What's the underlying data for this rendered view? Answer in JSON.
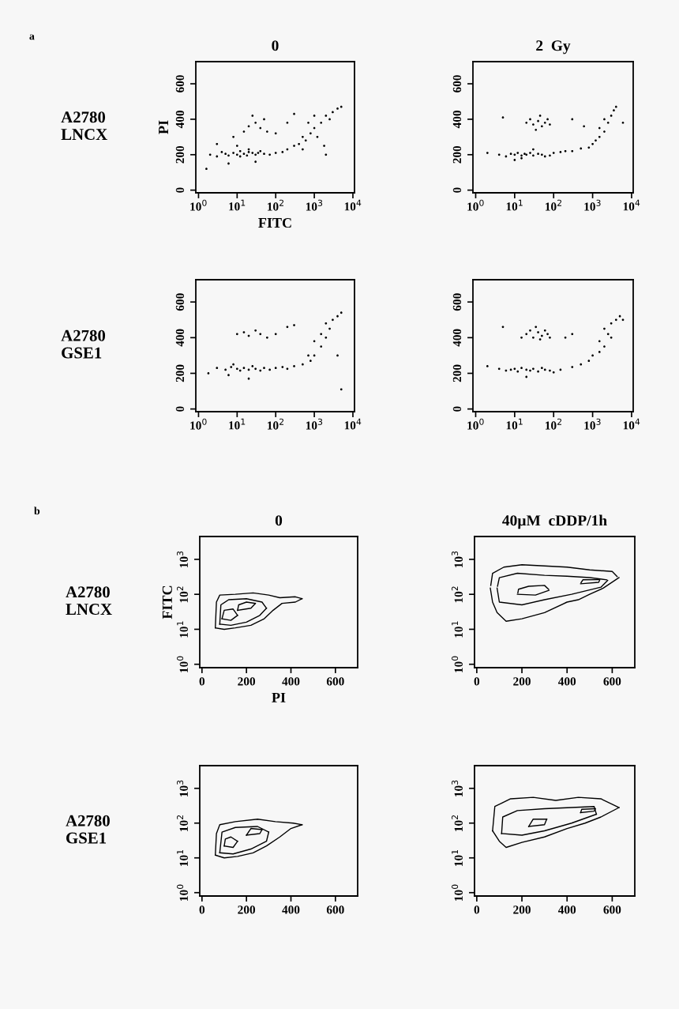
{
  "chart_data": [
    {
      "type": "scatter",
      "title": "0",
      "xlabel": "FITC",
      "ylabel": "PI",
      "annotations": [
        "a",
        "A2780\nLNCX"
      ],
      "log": "x",
      "marker": "circle",
      "grid": false,
      "legend": false,
      "xlim": [
        0.85,
        11000
      ],
      "ylim": [
        -15,
        725
      ],
      "xticks": [
        {
          "value": 1,
          "label": "10$^{0}$"
        },
        {
          "value": 10,
          "label": "10$^{1}$"
        },
        {
          "value": 100,
          "label": "10$^{2}$"
        },
        {
          "value": 1000,
          "label": "10$^{3}$"
        },
        {
          "value": 10000,
          "label": "10$^{4}$"
        }
      ],
      "yticks": [
        0,
        200,
        400,
        600
      ],
      "series": [
        {
          "color": "#000000",
          "x": [
            2,
            3,
            4,
            5,
            6,
            8,
            10,
            12,
            15,
            18,
            20,
            25,
            30,
            40,
            50,
            70,
            100,
            150,
            200,
            300,
            400,
            500,
            600,
            800,
            1000,
            1200,
            1500,
            2000,
            2500,
            3000,
            4000,
            1000,
            700,
            1800,
            500,
            20,
            30,
            40,
            25,
            50,
            15,
            8,
            60,
            100,
            200,
            3,
            6,
            30,
            1.6,
            5000,
            2000,
            300,
            10,
            12,
            20,
            35
          ],
          "values": [
            200,
            190,
            215,
            205,
            195,
            210,
            200,
            220,
            205,
            195,
            215,
            210,
            200,
            220,
            205,
            200,
            210,
            215,
            230,
            250,
            260,
            300,
            280,
            320,
            350,
            300,
            380,
            420,
            400,
            440,
            460,
            420,
            380,
            250,
            230,
            360,
            380,
            350,
            420,
            400,
            330,
            300,
            330,
            320,
            380,
            260,
            150,
            160,
            120,
            470,
            200,
            430,
            250,
            190,
            230,
            210
          ]
        }
      ]
    },
    {
      "type": "scatter",
      "title": "2  Gy",
      "log": "x",
      "marker": "circle",
      "grid": false,
      "legend": false,
      "xlim": [
        0.85,
        11000
      ],
      "ylim": [
        -15,
        725
      ],
      "xticks": [
        {
          "value": 1,
          "label": "10$^{0}$"
        },
        {
          "value": 10,
          "label": "10$^{1}$"
        },
        {
          "value": 100,
          "label": "10$^{2}$"
        },
        {
          "value": 1000,
          "label": "10$^{3}$"
        },
        {
          "value": 10000,
          "label": "10$^{4}$"
        }
      ],
      "yticks": [
        0,
        200,
        400,
        600
      ],
      "series": [
        {
          "color": "#000000",
          "x": [
            2,
            4,
            6,
            8,
            10,
            12,
            15,
            18,
            20,
            25,
            30,
            40,
            50,
            60,
            80,
            100,
            150,
            200,
            300,
            500,
            800,
            1000,
            1200,
            1500,
            2000,
            2500,
            3000,
            4000,
            3500,
            2000,
            1500,
            20,
            25,
            30,
            40,
            50,
            60,
            70,
            80,
            35,
            45,
            5,
            300,
            600,
            6000,
            10,
            15,
            30
          ],
          "values": [
            210,
            200,
            190,
            205,
            200,
            210,
            195,
            205,
            200,
            210,
            195,
            205,
            200,
            190,
            195,
            210,
            215,
            220,
            220,
            235,
            240,
            260,
            280,
            300,
            330,
            380,
            420,
            470,
            450,
            400,
            350,
            380,
            400,
            370,
            390,
            360,
            380,
            400,
            370,
            340,
            420,
            410,
            400,
            360,
            380,
            170,
            180,
            230
          ]
        }
      ]
    },
    {
      "type": "scatter",
      "annotations": [
        "A2780\nGSE1"
      ],
      "log": "x",
      "marker": "circle",
      "grid": false,
      "legend": false,
      "xlim": [
        0.85,
        11000
      ],
      "ylim": [
        -15,
        725
      ],
      "xticks": [
        {
          "value": 1,
          "label": "10$^{0}$"
        },
        {
          "value": 10,
          "label": "10$^{1}$"
        },
        {
          "value": 100,
          "label": "10$^{2}$"
        },
        {
          "value": 1000,
          "label": "10$^{3}$"
        },
        {
          "value": 10000,
          "label": "10$^{4}$"
        }
      ],
      "yticks": [
        0,
        200,
        400,
        600
      ],
      "series": [
        {
          "color": "#000000",
          "x": [
            1.8,
            3,
            5,
            7,
            10,
            12,
            15,
            20,
            25,
            30,
            40,
            50,
            70,
            100,
            150,
            200,
            300,
            500,
            800,
            1000,
            1500,
            2000,
            2500,
            3000,
            4000,
            5000,
            2000,
            1500,
            1000,
            700,
            10,
            15,
            20,
            30,
            40,
            60,
            100,
            200,
            300,
            8,
            20,
            6,
            5000,
            4000
          ],
          "values": [
            200,
            230,
            220,
            235,
            225,
            215,
            230,
            220,
            240,
            225,
            215,
            230,
            220,
            230,
            235,
            225,
            240,
            250,
            270,
            300,
            350,
            400,
            450,
            500,
            520,
            540,
            480,
            420,
            380,
            300,
            420,
            430,
            410,
            440,
            420,
            400,
            420,
            460,
            470,
            250,
            170,
            190,
            110,
            300
          ]
        }
      ]
    },
    {
      "type": "scatter",
      "log": "x",
      "marker": "circle",
      "grid": false,
      "legend": false,
      "xlim": [
        0.85,
        11000
      ],
      "ylim": [
        -15,
        725
      ],
      "xticks": [
        {
          "value": 1,
          "label": "10$^{0}$"
        },
        {
          "value": 10,
          "label": "10$^{1}$"
        },
        {
          "value": 100,
          "label": "10$^{2}$"
        },
        {
          "value": 1000,
          "label": "10$^{3}$"
        },
        {
          "value": 10000,
          "label": "10$^{4}$"
        }
      ],
      "yticks": [
        0,
        200,
        400,
        600
      ],
      "series": [
        {
          "color": "#000000",
          "x": [
            2,
            4,
            6,
            8,
            10,
            12,
            15,
            20,
            25,
            30,
            40,
            50,
            60,
            80,
            100,
            150,
            300,
            500,
            800,
            1000,
            1500,
            2000,
            2500,
            3000,
            4000,
            5000,
            3000,
            2000,
            1500,
            20,
            25,
            30,
            40,
            50,
            60,
            70,
            80,
            35,
            45,
            15,
            5,
            200,
            300,
            6000,
            20
          ],
          "values": [
            240,
            225,
            215,
            220,
            225,
            210,
            230,
            220,
            215,
            225,
            210,
            230,
            220,
            215,
            205,
            220,
            235,
            250,
            270,
            300,
            320,
            350,
            420,
            480,
            500,
            520,
            400,
            450,
            380,
            420,
            440,
            400,
            430,
            410,
            440,
            420,
            400,
            460,
            390,
            400,
            460,
            400,
            420,
            500,
            180
          ]
        }
      ]
    },
    {
      "type": "line",
      "title": "0",
      "xlabel": "PI",
      "ylabel": "FITC",
      "annotations": [
        "b",
        "A2780\nLNCX"
      ],
      "log": "y",
      "grid": false,
      "legend": false,
      "line_style": "solid",
      "marker": "none",
      "xlim": [
        -10,
        700
      ],
      "ylim": [
        0.8,
        4500
      ],
      "xticks": [
        0,
        200,
        400,
        600
      ],
      "yticks": [
        {
          "value": 1,
          "label": "10$^{0}$"
        },
        {
          "value": 10,
          "label": "10$^{1}$"
        },
        {
          "value": 100,
          "label": "10$^{2}$"
        },
        {
          "value": 1000,
          "label": "10$^{3}$"
        }
      ],
      "series": [
        {
          "color": "#000000",
          "x": [
            60,
            100,
            150,
            220,
            280,
            320,
            360,
            420,
            450
          ],
          "values": [
            11,
            10,
            11,
            13,
            20,
            35,
            55,
            60,
            75
          ]
        },
        {
          "color": "#000000",
          "x": [
            60,
            65,
            80,
            150,
            230,
            300,
            350,
            420,
            450
          ],
          "values": [
            11,
            60,
            95,
            100,
            110,
            95,
            80,
            85,
            75
          ]
        },
        {
          "color": "#000000",
          "x": [
            80,
            130,
            200,
            260,
            290
          ],
          "values": [
            14,
            13,
            16,
            25,
            40
          ]
        },
        {
          "color": "#000000",
          "x": [
            80,
            85,
            120,
            200,
            270,
            290
          ],
          "values": [
            14,
            50,
            70,
            75,
            60,
            40
          ]
        },
        {
          "color": "#000000",
          "x": [
            90,
            130,
            160
          ],
          "values": [
            20,
            18,
            25
          ]
        },
        {
          "color": "#000000",
          "x": [
            90,
            100,
            140,
            160
          ],
          "values": [
            20,
            35,
            38,
            25
          ]
        },
        {
          "color": "#000000",
          "x": [
            160,
            220,
            240
          ],
          "values": [
            35,
            40,
            55
          ]
        },
        {
          "color": "#000000",
          "x": [
            160,
            165,
            200,
            240
          ],
          "values": [
            35,
            50,
            60,
            55
          ]
        }
      ]
    },
    {
      "type": "line",
      "title": "40µM  cDDP/1h",
      "log": "y",
      "grid": false,
      "legend": false,
      "line_style": "solid",
      "marker": "none",
      "xlim": [
        -10,
        700
      ],
      "ylim": [
        0.8,
        4500
      ],
      "xticks": [
        0,
        200,
        400,
        600
      ],
      "yticks": [
        {
          "value": 1,
          "label": "10$^{0}$"
        },
        {
          "value": 10,
          "label": "10$^{1}$"
        },
        {
          "value": 100,
          "label": "10$^{2}$"
        },
        {
          "value": 1000,
          "label": "10$^{3}$"
        }
      ],
      "series": [
        {
          "color": "#000000",
          "x": [
            60,
            70,
            90,
            130,
            200,
            300,
            400,
            450,
            500,
            560,
            630
          ],
          "values": [
            150,
            60,
            30,
            17,
            20,
            30,
            60,
            70,
            100,
            150,
            300
          ]
        },
        {
          "color": "#000000",
          "x": [
            62,
            70,
            120,
            200,
            300,
            400,
            500,
            600,
            622
          ],
          "values": [
            180,
            400,
            600,
            700,
            650,
            600,
            500,
            450,
            320
          ]
        },
        {
          "color": "#000000",
          "x": [
            90,
            100,
            200,
            300,
            420,
            550,
            580
          ],
          "values": [
            150,
            60,
            50,
            70,
            100,
            160,
            250
          ]
        },
        {
          "color": "#000000",
          "x": [
            92,
            100,
            180,
            300,
            400,
            500,
            575
          ],
          "values": [
            170,
            300,
            400,
            350,
            330,
            300,
            260
          ]
        },
        {
          "color": "#000000",
          "x": [
            180,
            260,
            320
          ],
          "values": [
            100,
            95,
            130
          ]
        },
        {
          "color": "#000000",
          "x": [
            182,
            185,
            230,
            300,
            318
          ],
          "values": [
            110,
            140,
            170,
            180,
            140
          ]
        },
        {
          "color": "#000000",
          "x": [
            460,
            540,
            545
          ],
          "values": [
            200,
            220,
            260
          ]
        },
        {
          "color": "#000000",
          "x": [
            462,
            470,
            540
          ],
          "values": [
            215,
            260,
            262
          ]
        }
      ]
    },
    {
      "type": "line",
      "annotations": [
        "A2780\nGSE1"
      ],
      "log": "y",
      "grid": false,
      "legend": false,
      "line_style": "solid",
      "marker": "none",
      "xlim": [
        -10,
        700
      ],
      "ylim": [
        0.8,
        4500
      ],
      "xticks": [
        0,
        200,
        400,
        600
      ],
      "yticks": [
        {
          "value": 1,
          "label": "10$^{0}$"
        },
        {
          "value": 10,
          "label": "10$^{1}$"
        },
        {
          "value": 100,
          "label": "10$^{2}$"
        },
        {
          "value": 1000,
          "label": "10$^{3}$"
        }
      ],
      "series": [
        {
          "color": "#000000",
          "x": [
            60,
            100,
            160,
            230,
            290,
            350,
            400,
            450
          ],
          "values": [
            12,
            10,
            11,
            14,
            22,
            40,
            70,
            90
          ]
        },
        {
          "color": "#000000",
          "x": [
            60,
            65,
            80,
            150,
            250,
            330,
            410,
            450
          ],
          "values": [
            12,
            50,
            90,
            110,
            130,
            110,
            100,
            90
          ]
        },
        {
          "color": "#000000",
          "x": [
            80,
            140,
            220,
            290,
            300
          ],
          "values": [
            14,
            13,
            18,
            30,
            55
          ]
        },
        {
          "color": "#000000",
          "x": [
            80,
            90,
            150,
            250,
            300
          ],
          "values": [
            14,
            55,
            75,
            80,
            55
          ]
        },
        {
          "color": "#000000",
          "x": [
            100,
            140,
            160
          ],
          "values": [
            22,
            20,
            30
          ]
        },
        {
          "color": "#000000",
          "x": [
            100,
            105,
            130,
            160
          ],
          "values": [
            22,
            35,
            40,
            30
          ]
        },
        {
          "color": "#000000",
          "x": [
            200,
            260,
            270
          ],
          "values": [
            45,
            50,
            65
          ]
        },
        {
          "color": "#000000",
          "x": [
            200,
            220,
            270
          ],
          "values": [
            45,
            70,
            65
          ]
        }
      ]
    },
    {
      "type": "line",
      "log": "y",
      "grid": false,
      "legend": false,
      "line_style": "solid",
      "marker": "none",
      "xlim": [
        -10,
        700
      ],
      "ylim": [
        0.8,
        4500
      ],
      "xticks": [
        0,
        200,
        400,
        600
      ],
      "yticks": [
        {
          "value": 1,
          "label": "10$^{0}$"
        },
        {
          "value": 10,
          "label": "10$^{1}$"
        },
        {
          "value": 100,
          "label": "10$^{2}$"
        },
        {
          "value": 1000,
          "label": "10$^{3}$"
        }
      ],
      "series": [
        {
          "color": "#000000",
          "x": [
            70,
            100,
            130,
            200,
            300,
            400,
            480,
            550,
            630
          ],
          "values": [
            60,
            30,
            20,
            28,
            40,
            70,
            100,
            150,
            280
          ]
        },
        {
          "color": "#000000",
          "x": [
            70,
            80,
            150,
            250,
            350,
            450,
            550,
            630
          ],
          "values": [
            60,
            300,
            500,
            550,
            450,
            550,
            500,
            280
          ]
        },
        {
          "color": "#000000",
          "x": [
            110,
            200,
            300,
            420,
            530
          ],
          "values": [
            50,
            45,
            60,
            100,
            180
          ]
        },
        {
          "color": "#000000",
          "x": [
            110,
            115,
            180,
            300,
            420,
            520,
            530
          ],
          "values": [
            50,
            150,
            230,
            260,
            280,
            300,
            180
          ]
        },
        {
          "color": "#000000",
          "x": [
            230,
            300,
            310
          ],
          "values": [
            80,
            90,
            130
          ]
        },
        {
          "color": "#000000",
          "x": [
            230,
            250,
            310
          ],
          "values": [
            80,
            130,
            130
          ]
        },
        {
          "color": "#000000",
          "x": [
            460,
            520,
            525
          ],
          "values": [
            200,
            220,
            260
          ]
        },
        {
          "color": "#000000",
          "x": [
            460,
            465,
            525
          ],
          "values": [
            200,
            250,
            260
          ]
        }
      ]
    }
  ]
}
